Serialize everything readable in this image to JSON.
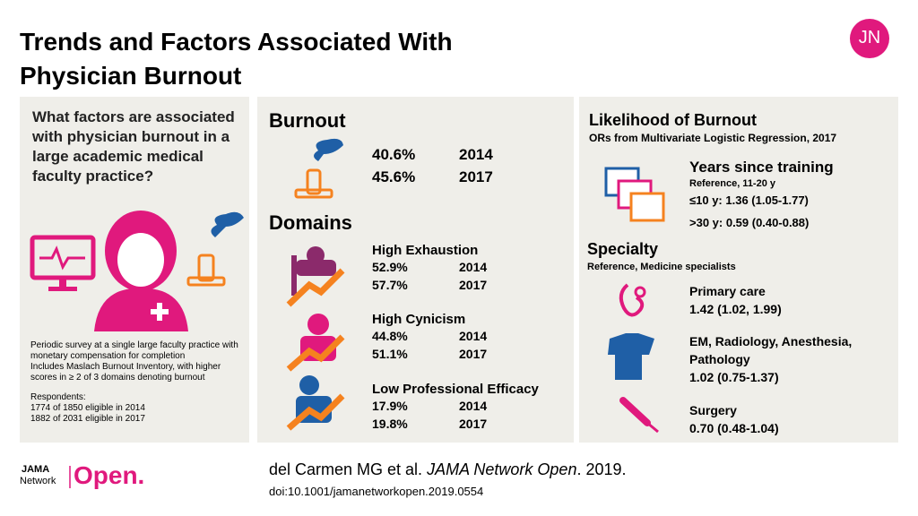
{
  "header": {
    "title_lines": [
      "Trends and Factors Associated With",
      "Physician Burnout"
    ],
    "logo": "JN"
  },
  "left": {
    "question": "What factors are associated with physician burnout in a large academic medical faculty practice?",
    "methods": [
      "Periodic survey at a single large faculty practice with monetary compensation for completion",
      "Includes Maslach Burnout Inventory, with higher scores in ≥ 2 of 3 domains denoting burnout"
    ],
    "respondents_title": "Respondents:",
    "respondents": [
      "1774 of 1850 eligible in 2014",
      "1882 of 2031 eligible in 2017"
    ]
  },
  "middle": {
    "burnout_title": "Burnout",
    "burnout_rows": [
      [
        "40.6%",
        "2014"
      ],
      [
        "45.6%",
        "2017"
      ]
    ],
    "domains_title": "Domains",
    "domains": [
      {
        "name": "High Exhaustion",
        "rows": [
          [
            "52.9%",
            "2014"
          ],
          [
            "57.7%",
            "2017"
          ]
        ]
      },
      {
        "name": "High Cynicism",
        "rows": [
          [
            "44.8%",
            "2014"
          ],
          [
            "51.1%",
            "2017"
          ]
        ]
      },
      {
        "name": "Low Professional Efficacy",
        "rows": [
          [
            "17.9%",
            "2014"
          ],
          [
            "19.8%",
            "2017"
          ]
        ]
      }
    ]
  },
  "right": {
    "title": "Likelihood of Burnout",
    "subtitle": "ORs from Multivariate Logistic Regression, 2017",
    "years_title": "Years since training",
    "years_reference": "Reference, 11-20 y",
    "years_rows": [
      "≤10 y: 1.36 (1.05-1.77)",
      ">30 y: 0.59 (0.40-0.88)"
    ],
    "specialty_title": "Specialty",
    "specialty_reference": "Reference, Medicine specialists",
    "specialties": [
      {
        "name": "Primary care",
        "value": "1.42 (1.02, 1.99)"
      },
      {
        "name": "EM, Radiology, Anesthesia, Pathology",
        "value": "1.02 (0.75-1.37)"
      },
      {
        "name": "Surgery",
        "value": "0.70 (0.48-1.04)"
      }
    ]
  },
  "footer": {
    "logo": [
      "JAMA",
      "Network",
      "Open."
    ],
    "citation": [
      "del Carmen MG et al. ",
      "JAMA Network Open",
      ". 2019."
    ],
    "doi": "doi:10.1001/jamanetworkopen.2019.0554"
  }
}
